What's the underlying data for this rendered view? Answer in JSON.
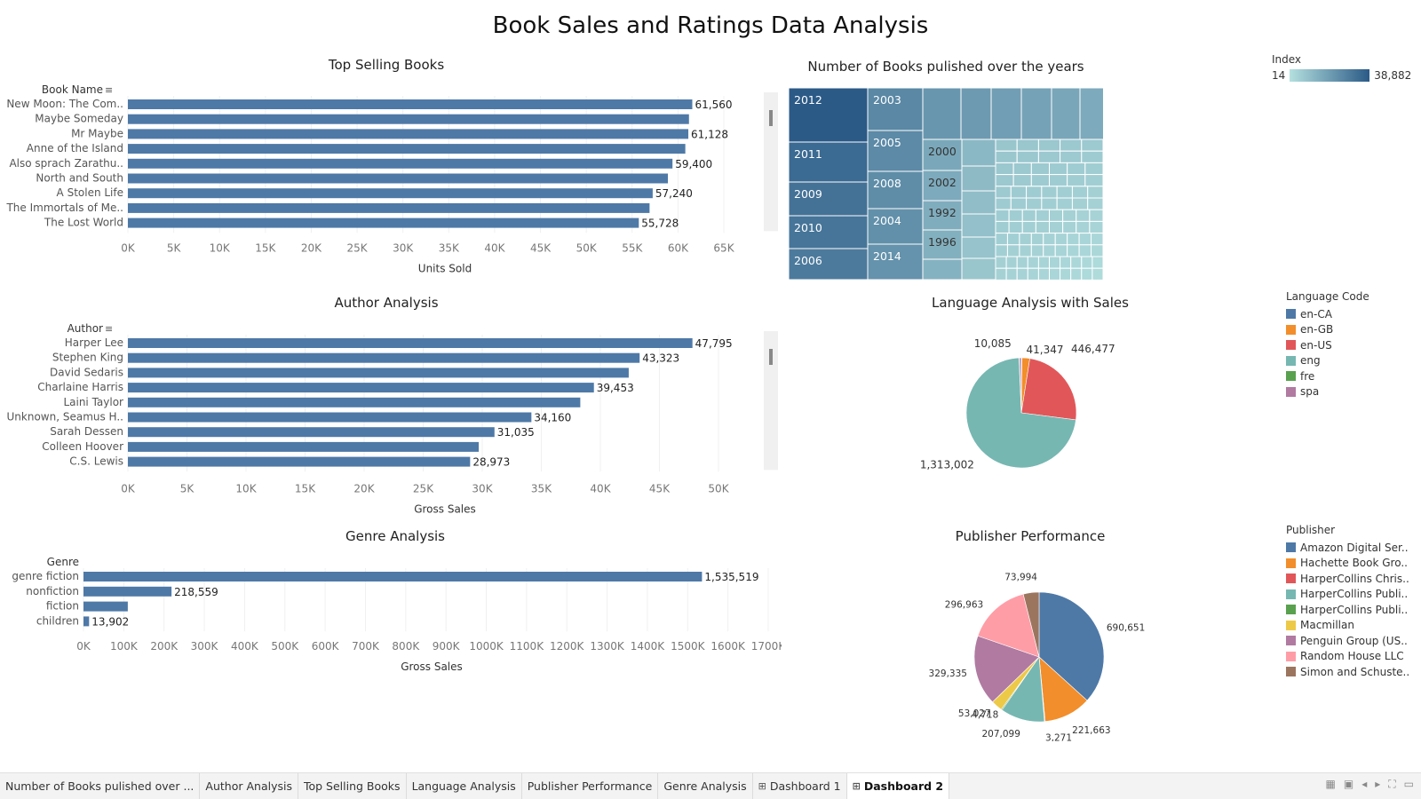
{
  "dashboard": {
    "title": "Book Sales and Ratings Data Analysis"
  },
  "top_selling": {
    "title": "Top Selling Books",
    "header": "Book Name",
    "xlabel": "Units Sold",
    "ticks": [
      "0K",
      "5K",
      "10K",
      "15K",
      "20K",
      "25K",
      "30K",
      "35K",
      "40K",
      "45K",
      "50K",
      "55K",
      "60K",
      "65K"
    ]
  },
  "author_analysis": {
    "title": "Author Analysis",
    "header": "Author",
    "xlabel": "Gross Sales",
    "ticks": [
      "0K",
      "5K",
      "10K",
      "15K",
      "20K",
      "25K",
      "30K",
      "35K",
      "40K",
      "45K",
      "50K"
    ]
  },
  "genre_analysis": {
    "title": "Genre Analysis",
    "header": "Genre",
    "xlabel": "Gross Sales",
    "ticks": [
      "0K",
      "100K",
      "200K",
      "300K",
      "400K",
      "500K",
      "600K",
      "700K",
      "800K",
      "900K",
      "1000K",
      "1100K",
      "1200K",
      "1300K",
      "1400K",
      "1500K",
      "1600K",
      "1700K"
    ]
  },
  "books_per_year": {
    "title": "Number of Books pulished over the years",
    "legend_title": "Index",
    "legend_min": "14",
    "legend_max": "38,882",
    "colors": {
      "low": "#b4e0df",
      "high": "#2b5a87"
    }
  },
  "language_analysis": {
    "title": "Language Analysis with Sales",
    "legend_title": "Language Code"
  },
  "publisher_performance": {
    "title": "Publisher Performance",
    "legend_title": "Publisher"
  },
  "tabs": [
    {
      "label": "Number of Books pulished over ...",
      "icon": "",
      "active": false
    },
    {
      "label": "Author Analysis",
      "icon": "",
      "active": false
    },
    {
      "label": "Top Selling Books",
      "icon": "",
      "active": false
    },
    {
      "label": "Language Analysis",
      "icon": "",
      "active": false
    },
    {
      "label": "Publisher Performance",
      "icon": "",
      "active": false
    },
    {
      "label": "Genre Analysis",
      "icon": "",
      "active": false
    },
    {
      "label": "Dashboard 1",
      "icon": "grid-icon",
      "active": false
    },
    {
      "label": "Dashboard 2",
      "icon": "grid-icon",
      "active": true
    }
  ],
  "nav_controls": [
    "grid-view-icon",
    "film-strip-icon",
    "prev-sheet-icon",
    "next-sheet-icon",
    "fullscreen-icon",
    "present-icon"
  ],
  "chart_data": [
    {
      "type": "bar",
      "title": "Top Selling Books",
      "xlabel": "Units Sold",
      "ylabel": "Book Name",
      "xlim": [
        0,
        65000
      ],
      "categories": [
        "New Moon: The Com..",
        "Maybe Someday",
        "Mr Maybe",
        "Anne of the Island",
        "Also sprach Zarathu..",
        "North and South",
        "A Stolen Life",
        "The Immortals of Me..",
        "The Lost World"
      ],
      "values": [
        61560,
        61200,
        61128,
        60800,
        59400,
        58900,
        57240,
        56900,
        55728
      ],
      "labels": [
        "61,560",
        "",
        "61,128",
        "",
        "59,400",
        "",
        "57,240",
        "",
        "55,728"
      ],
      "color": "#4e79a7"
    },
    {
      "type": "bar",
      "title": "Author Analysis",
      "xlabel": "Gross Sales",
      "ylabel": "Author",
      "xlim": [
        0,
        50000
      ],
      "categories": [
        "Harper Lee",
        "Stephen King",
        "David Sedaris",
        "Charlaine Harris",
        "Laini Taylor",
        "Unknown, Seamus H..",
        "Sarah Dessen",
        "Colleen Hoover",
        "C.S. Lewis"
      ],
      "values": [
        47795,
        43323,
        42400,
        39453,
        38300,
        34160,
        31035,
        29700,
        28973
      ],
      "labels": [
        "47,795",
        "43,323",
        "",
        "39,453",
        "",
        "34,160",
        "31,035",
        "",
        "28,973"
      ],
      "color": "#4e79a7"
    },
    {
      "type": "bar",
      "title": "Genre Analysis",
      "xlabel": "Gross Sales",
      "ylabel": "Genre",
      "xlim": [
        0,
        1700000
      ],
      "categories": [
        "genre fiction",
        "nonfiction",
        "fiction",
        "children"
      ],
      "values": [
        1535519,
        218559,
        110000,
        13902
      ],
      "labels": [
        "1,535,519",
        "218,559",
        "",
        "13,902"
      ],
      "color": "#4e79a7"
    },
    {
      "type": "treemap",
      "title": "Number of Books pulished over the years",
      "colorscale": "Index",
      "range": [
        14,
        38882
      ],
      "labeled_years": [
        "2012",
        "2011",
        "2009",
        "2010",
        "2006",
        "2003",
        "2005",
        "2008",
        "2004",
        "2014",
        "2000",
        "2002",
        "1992",
        "1996"
      ]
    },
    {
      "type": "pie",
      "title": "Language Analysis with Sales",
      "categories": [
        "en-CA",
        "en-GB",
        "en-US",
        "eng",
        "fre",
        "spa"
      ],
      "values": [
        3500,
        41347,
        446477,
        1313002,
        2000,
        10085
      ],
      "labels": [
        "",
        "41,347",
        "446,477",
        "1,313,002",
        "",
        "10,085"
      ],
      "colors": [
        "#4e79a7",
        "#f28e2b",
        "#e15759",
        "#76b7b2",
        "#59a14f",
        "#b07aa1"
      ]
    },
    {
      "type": "pie",
      "title": "Publisher Performance",
      "categories": [
        "Amazon Digital Ser..",
        "Hachette Book Gro..",
        "HarperCollins Chris..",
        "HarperCollins Publi..",
        "HarperCollins Publi..",
        "Macmillan",
        "Penguin Group (US..",
        "Random House LLC",
        "Simon and Schuste.."
      ],
      "values": [
        690651,
        221663,
        3271,
        207099,
        4718,
        53027,
        329335,
        296963,
        73994
      ],
      "labels": [
        "690,651",
        "221,663",
        "3,271",
        "207,099",
        "4,718",
        "53,027",
        "329,335",
        "296,963",
        "73,994"
      ],
      "colors": [
        "#4e79a7",
        "#f28e2b",
        "#e15759",
        "#76b7b2",
        "#59a14f",
        "#edc948",
        "#b07aa1",
        "#ff9da7",
        "#9c755f"
      ]
    }
  ]
}
